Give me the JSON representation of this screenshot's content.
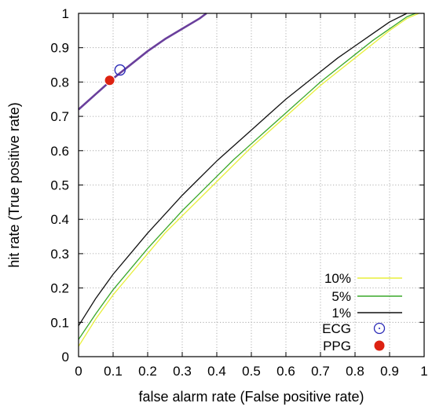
{
  "chart_data": {
    "type": "line",
    "title": "",
    "xlabel": "false alarm rate (False positive rate)",
    "ylabel": "hit rate (True positive rate)",
    "xlim": [
      0,
      1
    ],
    "ylim": [
      0,
      1
    ],
    "grid": true,
    "legend_position": "bottom-right",
    "x_ticks": [
      "0",
      "0.1",
      "0.2",
      "0.3",
      "0.4",
      "0.5",
      "0.6",
      "0.7",
      "0.8",
      "0.9",
      "1"
    ],
    "y_ticks": [
      "0",
      "0.1",
      "0.2",
      "0.3",
      "0.4",
      "0.5",
      "0.6",
      "0.7",
      "0.8",
      "0.9",
      "1"
    ],
    "series": [
      {
        "name": "10%",
        "color": "#e8ef3a",
        "x": [
          0,
          0.05,
          0.1,
          0.15,
          0.2,
          0.25,
          0.3,
          0.35,
          0.4,
          0.45,
          0.5,
          0.55,
          0.6,
          0.65,
          0.7,
          0.75,
          0.8,
          0.85,
          0.9,
          0.95,
          0.985
        ],
        "y": [
          0.03,
          0.11,
          0.18,
          0.24,
          0.3,
          0.36,
          0.41,
          0.46,
          0.51,
          0.56,
          0.61,
          0.655,
          0.7,
          0.745,
          0.79,
          0.83,
          0.87,
          0.91,
          0.95,
          0.985,
          1.0
        ]
      },
      {
        "name": "5%",
        "color": "#3aa82a",
        "x": [
          0,
          0.05,
          0.1,
          0.15,
          0.2,
          0.25,
          0.3,
          0.35,
          0.4,
          0.45,
          0.5,
          0.55,
          0.6,
          0.65,
          0.7,
          0.75,
          0.8,
          0.85,
          0.9,
          0.95,
          0.975
        ],
        "y": [
          0.05,
          0.125,
          0.195,
          0.255,
          0.315,
          0.37,
          0.425,
          0.475,
          0.525,
          0.575,
          0.62,
          0.665,
          0.71,
          0.755,
          0.8,
          0.84,
          0.88,
          0.92,
          0.955,
          0.99,
          1.0
        ]
      },
      {
        "name": "1%",
        "color": "#111111",
        "x": [
          0,
          0.05,
          0.1,
          0.15,
          0.2,
          0.25,
          0.3,
          0.35,
          0.4,
          0.45,
          0.5,
          0.55,
          0.6,
          0.65,
          0.7,
          0.75,
          0.8,
          0.85,
          0.9,
          0.95
        ],
        "y": [
          0.09,
          0.17,
          0.24,
          0.3,
          0.36,
          0.415,
          0.47,
          0.52,
          0.57,
          0.615,
          0.66,
          0.705,
          0.75,
          0.79,
          0.83,
          0.87,
          0.905,
          0.94,
          0.975,
          1.0
        ]
      },
      {
        "color": "#6a3f9c",
        "x": [
          0,
          0.05,
          0.1,
          0.15,
          0.2,
          0.25,
          0.3,
          0.35,
          0.37
        ],
        "y": [
          0.72,
          0.765,
          0.81,
          0.85,
          0.89,
          0.925,
          0.955,
          0.985,
          1.0
        ]
      }
    ],
    "points": [
      {
        "name": "ECG",
        "x": 0.12,
        "y": 0.835,
        "marker": "open-circle",
        "color": "#2b2bb8"
      },
      {
        "name": "PPG",
        "x": 0.09,
        "y": 0.805,
        "marker": "filled-circle",
        "color": "#dd2211"
      }
    ],
    "legend": [
      {
        "label": "10%",
        "kind": "line",
        "color": "#e8ef3a"
      },
      {
        "label": "5%",
        "kind": "line",
        "color": "#3aa82a"
      },
      {
        "label": "1%",
        "kind": "line",
        "color": "#111111"
      },
      {
        "label": "ECG",
        "kind": "open-circle",
        "color": "#2b2bb8"
      },
      {
        "label": "PPG",
        "kind": "filled-circle",
        "color": "#dd2211"
      }
    ]
  }
}
